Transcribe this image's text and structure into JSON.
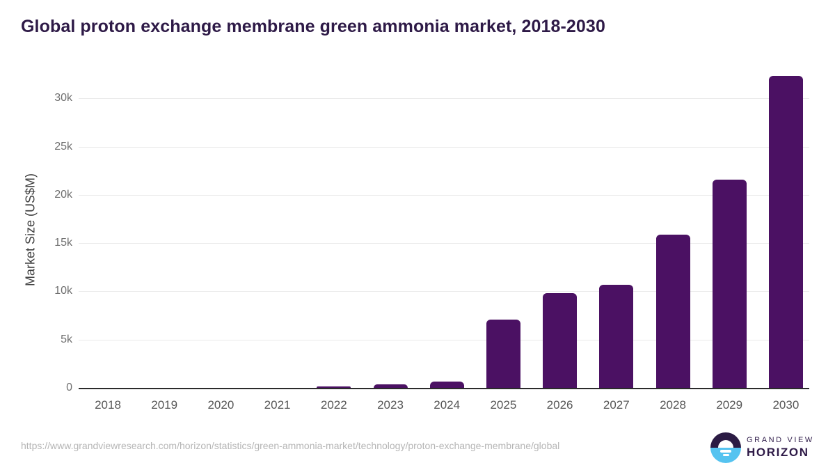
{
  "header": {
    "title": "Global proton exchange membrane green ammonia market, 2018-2030"
  },
  "chart_data": {
    "type": "bar",
    "title": "Global proton exchange membrane green ammonia market, 2018-2030",
    "categories": [
      "2018",
      "2019",
      "2020",
      "2021",
      "2022",
      "2023",
      "2024",
      "2025",
      "2026",
      "2027",
      "2028",
      "2029",
      "2030"
    ],
    "values": [
      2,
      5,
      10,
      30,
      160,
      330,
      650,
      7100,
      9800,
      10700,
      15900,
      21550,
      32300
    ],
    "xlabel": "",
    "ylabel": "Market Size (US$M)",
    "unit": "US$M",
    "ylim": [
      0,
      33000
    ],
    "yticks": {
      "values": [
        0,
        5000,
        10000,
        15000,
        20000,
        25000,
        30000
      ],
      "labels": [
        "0",
        "5k",
        "10k",
        "15k",
        "20k",
        "25k",
        "30k"
      ]
    },
    "grid": true,
    "legend": false,
    "bar_color": "#4b1163"
  },
  "footer": {
    "source_url": "https://www.grandviewresearch.com/horizon/statistics/green-ammonia-market/technology/proton-exchange-membrane/global",
    "logo": {
      "line1": "GRAND VIEW",
      "line2": "HORIZON"
    }
  },
  "colors": {
    "bar": "#4b1163",
    "title": "#2e1a47",
    "axis_line": "#2b2b2b",
    "gridline": "#eaeaea",
    "logo_dark": "#2b1b44",
    "logo_blue": "#55c3f0"
  }
}
